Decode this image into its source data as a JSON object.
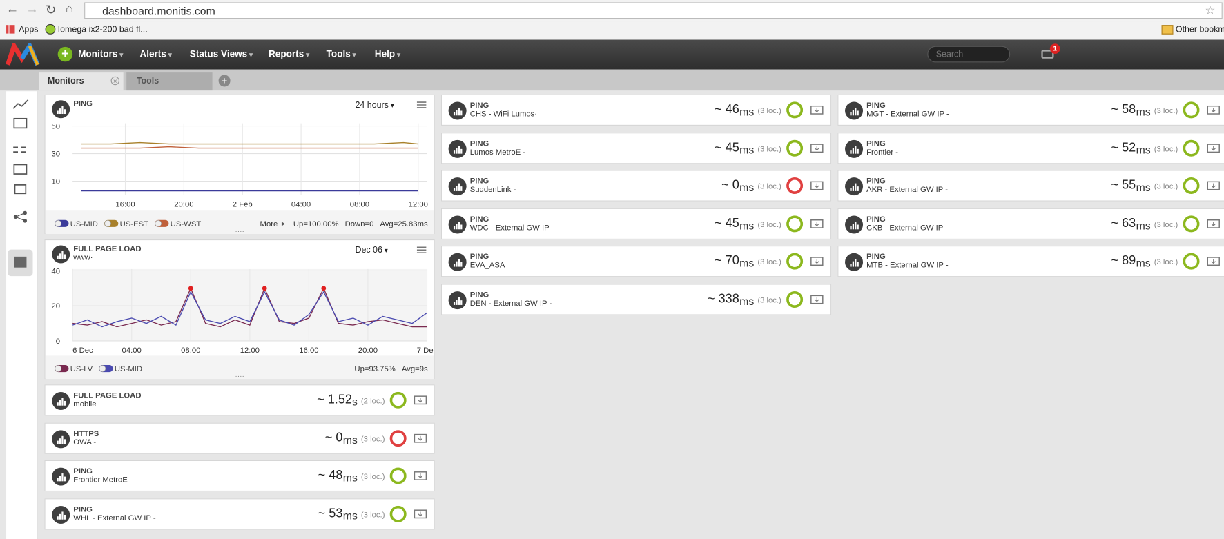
{
  "browser": {
    "url": "dashboard.monitis.com",
    "bookmarks": [
      "Apps",
      "Iomega ix2-200 bad fl...",
      "Other bookmar"
    ]
  },
  "nav": {
    "menu": [
      "Monitors",
      "Alerts",
      "Status Views",
      "Reports",
      "Tools",
      "Help"
    ],
    "search": "Search",
    "notifications": 1
  },
  "tabs": [
    "Monitors",
    "Tools"
  ],
  "ping_widget": {
    "title": "PING",
    "range": "24 hours",
    "more": "More",
    "stats": [
      "Up=100.00%",
      "Down=0",
      "Avg=25.83ms"
    ],
    "chart_data": {
      "type": "line",
      "x": [
        13,
        15,
        17,
        19,
        21,
        23,
        25,
        27,
        29,
        31,
        33,
        35,
        36
      ],
      "series": [
        {
          "name": "US-MID",
          "color": "#3b3b9a",
          "values": [
            3,
            3,
            3,
            3,
            3,
            3,
            3,
            3,
            3,
            3,
            3,
            3,
            3
          ]
        },
        {
          "name": "US-EST",
          "color": "#a8802a",
          "values": [
            37,
            37,
            38,
            37,
            37,
            37,
            37,
            37,
            37,
            37,
            37,
            38,
            37
          ]
        },
        {
          "name": "US-WST",
          "color": "#c0603a",
          "values": [
            34,
            34,
            34,
            35,
            34,
            34,
            34,
            34,
            34,
            34,
            34,
            34,
            34
          ]
        }
      ],
      "xlim": [
        12.4,
        36.6
      ],
      "xticks": [
        {
          "value": 16,
          "label": "16:00"
        },
        {
          "value": 20,
          "label": "20:00"
        },
        {
          "value": 24,
          "label": "2 Feb"
        },
        {
          "value": 28,
          "label": "04:00"
        },
        {
          "value": 32,
          "label": "08:00"
        },
        {
          "value": 36,
          "label": "12:00"
        }
      ],
      "ylim": [
        0,
        52
      ],
      "yticks": [
        10,
        30,
        50
      ],
      "grid": true
    }
  },
  "fpl_widget": {
    "title": "FULL PAGE LOAD",
    "subtitle": "www·",
    "range": "Dec 06",
    "stats": [
      "Up=93.75%",
      "Avg=9s"
    ],
    "chart_data": {
      "type": "line",
      "x": [
        0,
        1,
        2,
        3,
        4,
        5,
        6,
        7,
        8,
        9,
        10,
        11,
        12,
        13,
        14,
        15,
        16,
        17,
        18,
        19,
        20,
        21,
        22,
        23,
        24
      ],
      "series": [
        {
          "name": "US-LV",
          "color": "#7a2a50",
          "values": [
            10,
            9,
            11,
            8,
            10,
            12,
            9,
            11,
            30,
            10,
            8,
            12,
            9,
            30,
            11,
            10,
            13,
            30,
            10,
            9,
            11,
            12,
            10,
            8,
            8
          ]
        },
        {
          "name": "US-MID",
          "color": "#4a4ab0",
          "values": [
            9,
            12,
            8,
            11,
            13,
            10,
            14,
            9,
            28,
            12,
            10,
            14,
            11,
            28,
            12,
            9,
            15,
            28,
            11,
            13,
            9,
            14,
            12,
            10,
            16
          ]
        }
      ],
      "alerts": [
        8,
        13,
        17
      ],
      "alert_color": "#e02020",
      "xlim": [
        0,
        24
      ],
      "xticks": [
        {
          "value": 0,
          "label": "6 Dec"
        },
        {
          "value": 4,
          "label": "04:00"
        },
        {
          "value": 8,
          "label": "08:00"
        },
        {
          "value": 12,
          "label": "12:00"
        },
        {
          "value": 16,
          "label": "16:00"
        },
        {
          "value": 20,
          "label": "20:00"
        },
        {
          "value": 24,
          "label": "7 Dec"
        }
      ],
      "ylim": [
        0,
        41
      ],
      "yticks": [
        0,
        20,
        40
      ],
      "grid": true
    }
  },
  "tiles": {
    "left": [
      {
        "type": "FULL PAGE LOAD",
        "name": "mobile",
        "value": "~ 1.52",
        "unit": "s",
        "locations": "(2 loc.)",
        "color": "#8cb81e"
      },
      {
        "type": "HTTPS",
        "name": "OWA -",
        "value": "~ 0",
        "unit": "ms",
        "locations": "(3 loc.)",
        "color": "#e04040"
      },
      {
        "type": "PING",
        "name": "Frontier MetroE -",
        "value": "~ 48",
        "unit": "ms",
        "locations": "(3 loc.)",
        "color": "#8cb81e"
      },
      {
        "type": "PING",
        "name": "WHL - External GW IP -",
        "value": "~ 53",
        "unit": "ms",
        "locations": "(3 loc.)",
        "color": "#8cb81e"
      }
    ],
    "middle": [
      {
        "type": "PING",
        "name": "CHS - WiFi Lumos·",
        "value": "~ 46",
        "unit": "ms",
        "locations": "(3 loc.)",
        "color": "#8cb81e"
      },
      {
        "type": "PING",
        "name": "Lumos MetroE -",
        "value": "~ 45",
        "unit": "ms",
        "locations": "(3 loc.)",
        "color": "#8cb81e"
      },
      {
        "type": "PING",
        "name": "SuddenLink -",
        "value": "~ 0",
        "unit": "ms",
        "locations": "(3 loc.)",
        "color": "#e04040"
      },
      {
        "type": "PING",
        "name": "WDC - External GW IP",
        "value": "~ 45",
        "unit": "ms",
        "locations": "(3 loc.)",
        "color": "#8cb81e"
      },
      {
        "type": "PING",
        "name": "EVA_ASA",
        "value": "~ 70",
        "unit": "ms",
        "locations": "(3 loc.)",
        "color": "#8cb81e"
      },
      {
        "type": "PING",
        "name": "DEN - External GW IP -",
        "value": "~ 338",
        "unit": "ms",
        "locations": "(3 loc.)",
        "color": "#8cb81e"
      }
    ],
    "right": [
      {
        "type": "PING",
        "name": "MGT - External GW IP -",
        "value": "~ 58",
        "unit": "ms",
        "locations": "(3 loc.)",
        "color": "#8cb81e"
      },
      {
        "type": "PING",
        "name": "Frontier -",
        "value": "~ 52",
        "unit": "ms",
        "locations": "(3 loc.)",
        "color": "#8cb81e"
      },
      {
        "type": "PING",
        "name": "AKR - External GW IP -",
        "value": "~ 55",
        "unit": "ms",
        "locations": "(3 loc.)",
        "color": "#8cb81e"
      },
      {
        "type": "PING",
        "name": "CKB - External GW IP -",
        "value": "~ 63",
        "unit": "ms",
        "locations": "(3 loc.)",
        "color": "#8cb81e"
      },
      {
        "type": "PING",
        "name": "MTB - External GW IP -",
        "value": "~ 89",
        "unit": "ms",
        "locations": "(3 loc.)",
        "color": "#8cb81e"
      }
    ]
  }
}
